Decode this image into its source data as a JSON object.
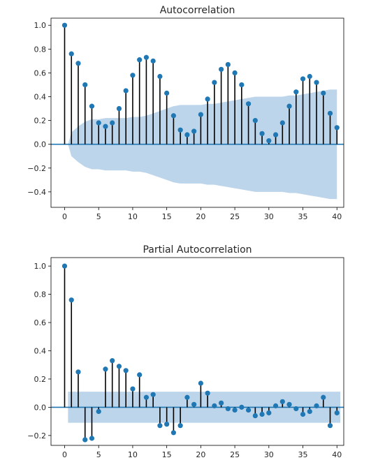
{
  "chart_data": [
    {
      "type": "stem",
      "title": "Autocorrelation",
      "xlim": [
        -2,
        41
      ],
      "ylim": [
        -0.53,
        1.06
      ],
      "x_ticks": [
        0,
        5,
        10,
        15,
        20,
        25,
        30,
        35,
        40
      ],
      "y_ticks": [
        -0.4,
        -0.2,
        0.0,
        0.2,
        0.4,
        0.6,
        0.8,
        1.0
      ],
      "x_tick_labels": [
        "0",
        "5",
        "10",
        "15",
        "20",
        "25",
        "30",
        "35",
        "40"
      ],
      "y_tick_labels": [
        "−0.4",
        "−0.2",
        "0.0",
        "0.2",
        "0.4",
        "0.6",
        "0.8",
        "1.0"
      ],
      "lags": [
        0,
        1,
        2,
        3,
        4,
        5,
        6,
        7,
        8,
        9,
        10,
        11,
        12,
        13,
        14,
        15,
        16,
        17,
        18,
        19,
        20,
        21,
        22,
        23,
        24,
        25,
        26,
        27,
        28,
        29,
        30,
        31,
        32,
        33,
        34,
        35,
        36,
        37,
        38,
        39,
        40
      ],
      "values": [
        1.0,
        0.76,
        0.68,
        0.5,
        0.32,
        0.18,
        0.15,
        0.18,
        0.3,
        0.45,
        0.58,
        0.71,
        0.73,
        0.7,
        0.57,
        0.43,
        0.24,
        0.12,
        0.08,
        0.11,
        0.25,
        0.38,
        0.52,
        0.63,
        0.67,
        0.6,
        0.5,
        0.34,
        0.2,
        0.09,
        0.03,
        0.08,
        0.18,
        0.32,
        0.44,
        0.55,
        0.57,
        0.52,
        0.43,
        0.26,
        0.14
      ],
      "confidence_band": {
        "upper": [
          0.0,
          0.1,
          0.15,
          0.19,
          0.21,
          0.21,
          0.22,
          0.22,
          0.22,
          0.22,
          0.23,
          0.23,
          0.24,
          0.26,
          0.28,
          0.3,
          0.32,
          0.33,
          0.33,
          0.33,
          0.33,
          0.34,
          0.34,
          0.35,
          0.36,
          0.37,
          0.38,
          0.39,
          0.4,
          0.4,
          0.4,
          0.4,
          0.4,
          0.41,
          0.41,
          0.42,
          0.43,
          0.44,
          0.45,
          0.46,
          0.46
        ],
        "lower": [
          0.0,
          -0.1,
          -0.15,
          -0.19,
          -0.21,
          -0.21,
          -0.22,
          -0.22,
          -0.22,
          -0.22,
          -0.23,
          -0.23,
          -0.24,
          -0.26,
          -0.28,
          -0.3,
          -0.32,
          -0.33,
          -0.33,
          -0.33,
          -0.33,
          -0.34,
          -0.34,
          -0.35,
          -0.36,
          -0.37,
          -0.38,
          -0.39,
          -0.4,
          -0.4,
          -0.4,
          -0.4,
          -0.4,
          -0.41,
          -0.41,
          -0.42,
          -0.43,
          -0.44,
          -0.45,
          -0.46,
          -0.46
        ]
      },
      "grid": false,
      "colors": {
        "marker": "#1f77b4",
        "stem": "#000000",
        "band": "#bcd5ea",
        "baseline": "#1f77b4"
      }
    },
    {
      "type": "stem",
      "title": "Partial Autocorrelation",
      "xlim": [
        -2,
        41
      ],
      "ylim": [
        -0.27,
        1.06
      ],
      "x_ticks": [
        0,
        5,
        10,
        15,
        20,
        25,
        30,
        35,
        40
      ],
      "y_ticks": [
        -0.2,
        0.0,
        0.2,
        0.4,
        0.6,
        0.8,
        1.0
      ],
      "x_tick_labels": [
        "0",
        "5",
        "10",
        "15",
        "20",
        "25",
        "30",
        "35",
        "40"
      ],
      "y_tick_labels": [
        "−0.2",
        "0.0",
        "0.2",
        "0.4",
        "0.6",
        "0.8",
        "1.0"
      ],
      "lags": [
        0,
        1,
        2,
        3,
        4,
        5,
        6,
        7,
        8,
        9,
        10,
        11,
        12,
        13,
        14,
        15,
        16,
        17,
        18,
        19,
        20,
        21,
        22,
        23,
        24,
        25,
        26,
        27,
        28,
        29,
        30,
        31,
        32,
        33,
        34,
        35,
        36,
        37,
        38,
        39,
        40
      ],
      "values": [
        1.0,
        0.76,
        0.25,
        -0.23,
        -0.22,
        -0.03,
        0.27,
        0.33,
        0.29,
        0.26,
        0.13,
        0.23,
        0.07,
        0.09,
        -0.13,
        -0.12,
        -0.18,
        -0.13,
        0.07,
        0.02,
        0.17,
        0.1,
        0.01,
        0.03,
        -0.01,
        -0.02,
        0.0,
        -0.02,
        -0.06,
        -0.05,
        -0.04,
        0.01,
        0.04,
        0.02,
        -0.01,
        -0.05,
        -0.03,
        0.01,
        0.07,
        -0.13,
        -0.04
      ],
      "confidence_band": {
        "upper": 0.11,
        "lower": -0.11,
        "from_lag": 0.5
      },
      "grid": false,
      "colors": {
        "marker": "#1f77b4",
        "stem": "#000000",
        "band": "#bcd5ea",
        "baseline": "#1f77b4"
      }
    }
  ]
}
